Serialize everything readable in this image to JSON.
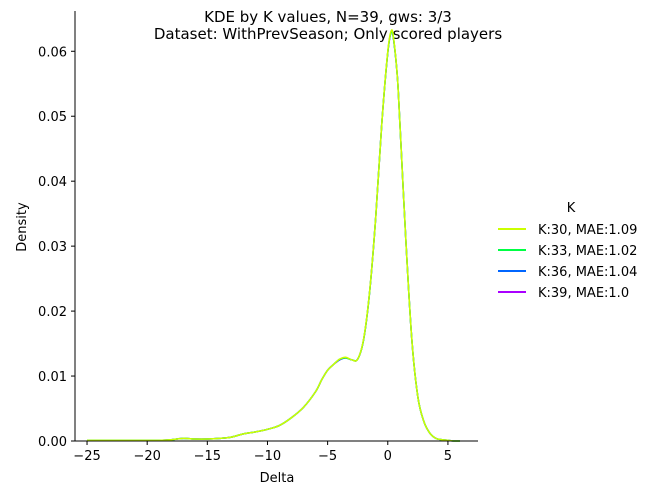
{
  "chart_data": {
    "type": "line",
    "title_line1": "KDE by K values, N=39, gws: 3/3",
    "title_line2": "Dataset: WithPrevSeason; Only scored players",
    "xlabel": "Delta",
    "ylabel": "Density",
    "xlim": [
      -26,
      7.5
    ],
    "ylim": [
      0,
      0.0662
    ],
    "xticks": [
      -25,
      -20,
      -15,
      -10,
      -5,
      0,
      5
    ],
    "xtick_labels": [
      "−25",
      "−20",
      "−15",
      "−10",
      "−5",
      "0",
      "5"
    ],
    "yticks": [
      0,
      0.01,
      0.02,
      0.03,
      0.04,
      0.05,
      0.06
    ],
    "ytick_labels": [
      "0.00",
      "0.01",
      "0.02",
      "0.03",
      "0.04",
      "0.05",
      "0.06"
    ],
    "grid": false,
    "legend_title": "K",
    "legend_position": "right",
    "x": [
      -25,
      -24,
      -23,
      -22,
      -21,
      -20,
      -19,
      -18,
      -17,
      -16,
      -15,
      -14,
      -13,
      -12,
      -11,
      -10,
      -9,
      -8,
      -7,
      -6,
      -5.5,
      -5,
      -4.5,
      -4,
      -3.5,
      -3,
      -2.5,
      -2,
      -1.5,
      -1,
      -0.5,
      0,
      0.3,
      0.5,
      0.8,
      1,
      1.5,
      2,
      2.5,
      3,
      3.5,
      4,
      4.5,
      5,
      5.5,
      6
    ],
    "series": [
      {
        "name": "K:30, MAE:1.09",
        "color": "#ccff00",
        "values": [
          0.0001,
          0.0001,
          0.0001,
          0.0001,
          0.0001,
          0.0001,
          0.0001,
          0.0002,
          0.0004,
          0.0003,
          0.0003,
          0.0004,
          0.0006,
          0.0011,
          0.0014,
          0.0018,
          0.0024,
          0.0036,
          0.0052,
          0.0076,
          0.0094,
          0.0109,
          0.0118,
          0.0126,
          0.0129,
          0.0125,
          0.0126,
          0.0158,
          0.0232,
          0.0345,
          0.0488,
          0.06,
          0.0632,
          0.0618,
          0.056,
          0.0492,
          0.031,
          0.0156,
          0.0068,
          0.003,
          0.0012,
          0.0004,
          0.0002,
          0.0001,
          0.0,
          0.0
        ]
      },
      {
        "name": "K:33, MAE:1.02",
        "color": "#00ff44",
        "values": [
          0.0001,
          0.0001,
          0.0001,
          0.0001,
          0.0001,
          0.0001,
          0.0001,
          0.0002,
          0.0004,
          0.0003,
          0.0003,
          0.0004,
          0.0006,
          0.0011,
          0.0014,
          0.0018,
          0.0024,
          0.0036,
          0.0052,
          0.0076,
          0.0094,
          0.0109,
          0.0118,
          0.0126,
          0.0128,
          0.0125,
          0.0126,
          0.0157,
          0.0231,
          0.0345,
          0.0488,
          0.0598,
          0.063,
          0.0616,
          0.056,
          0.0492,
          0.031,
          0.0156,
          0.0068,
          0.003,
          0.0012,
          0.0004,
          0.0002,
          0.0001,
          0.0,
          0.0
        ]
      },
      {
        "name": "K:36, MAE:1.04",
        "color": "#0066ff",
        "values": [
          0.0001,
          0.0001,
          0.0001,
          0.0001,
          0.0001,
          0.0001,
          0.0001,
          0.0002,
          0.0004,
          0.0003,
          0.0003,
          0.0004,
          0.0006,
          0.0011,
          0.0014,
          0.0018,
          0.0024,
          0.0036,
          0.0052,
          0.0076,
          0.0094,
          0.0109,
          0.0118,
          0.0125,
          0.0128,
          0.0125,
          0.0126,
          0.0157,
          0.0231,
          0.0345,
          0.0488,
          0.0598,
          0.063,
          0.0616,
          0.056,
          0.0492,
          0.031,
          0.0156,
          0.0068,
          0.003,
          0.0012,
          0.0004,
          0.0002,
          0.0001,
          0.0,
          0.0
        ]
      },
      {
        "name": "K:39, MAE:1.0",
        "color": "#aa00ff",
        "values": [
          0.0001,
          0.0001,
          0.0001,
          0.0001,
          0.0001,
          0.0001,
          0.0001,
          0.0002,
          0.0004,
          0.0003,
          0.0003,
          0.0004,
          0.0006,
          0.0011,
          0.0014,
          0.0018,
          0.0024,
          0.0036,
          0.0052,
          0.0076,
          0.0094,
          0.0109,
          0.0118,
          0.0125,
          0.0128,
          0.0125,
          0.0126,
          0.0157,
          0.0231,
          0.0345,
          0.0488,
          0.0598,
          0.063,
          0.0616,
          0.056,
          0.0492,
          0.031,
          0.0156,
          0.0068,
          0.003,
          0.0012,
          0.0004,
          0.0002,
          0.0001,
          0.0,
          0.0
        ]
      }
    ]
  }
}
